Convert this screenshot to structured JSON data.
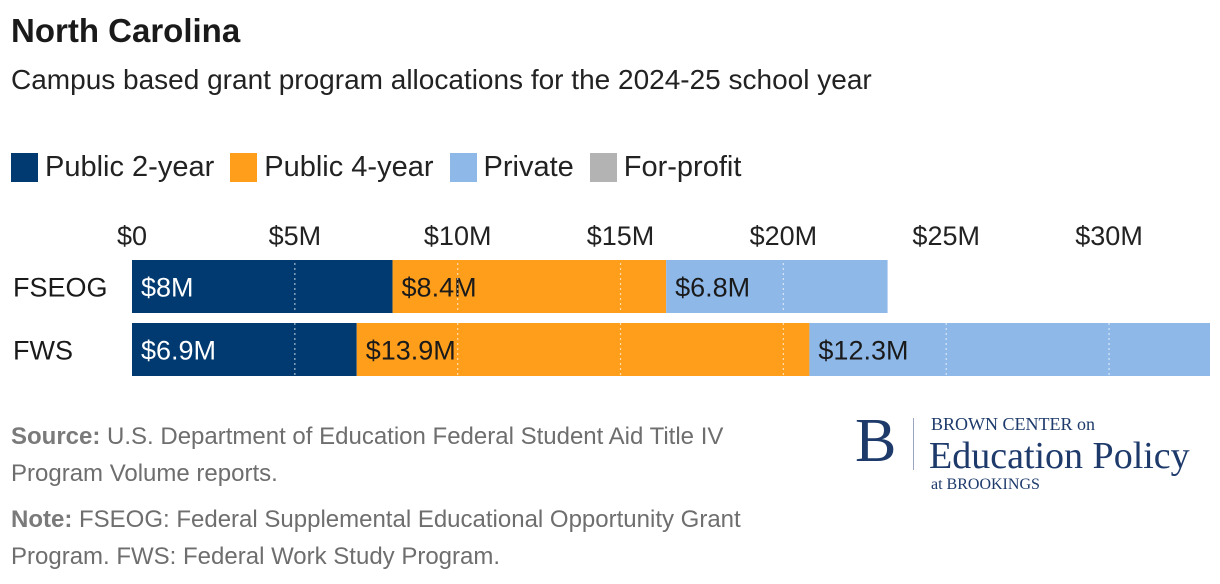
{
  "header": {
    "title": "North Carolina",
    "subtitle": "Campus based grant program allocations for the 2024-25 school year"
  },
  "chart_data": {
    "type": "bar",
    "orientation": "horizontal",
    "stacked": true,
    "title": "North Carolina",
    "subtitle": "Campus based grant program allocations for the 2024-25 school year",
    "categories": [
      "FSEOG",
      "FWS"
    ],
    "series": [
      {
        "name": "Public 2-year",
        "color": "#003a70",
        "values": [
          8.0,
          6.9
        ],
        "labels": [
          "$8M",
          "$6.9M"
        ],
        "label_color": "#ffffff"
      },
      {
        "name": "Public 4-year",
        "color": "#ff9e1b",
        "values": [
          8.4,
          13.9
        ],
        "labels": [
          "$8.4M",
          "$13.9M"
        ],
        "label_color": "#1a1a1a"
      },
      {
        "name": "Private",
        "color": "#8db8e8",
        "values": [
          6.8,
          12.3
        ],
        "labels": [
          "$6.8M",
          "$12.3M"
        ],
        "label_color": "#1a1a1a"
      },
      {
        "name": "For-profit",
        "color": "#b3b3b3",
        "values": [
          0,
          0
        ],
        "labels": [
          "",
          ""
        ],
        "label_color": "#1a1a1a"
      }
    ],
    "xlim": [
      0,
      33.1
    ],
    "ticks": [
      0,
      5,
      10,
      15,
      20,
      25,
      30
    ],
    "tick_labels": [
      "$0",
      "$5M",
      "$10M",
      "$15M",
      "$20M",
      "$25M",
      "$30M"
    ],
    "xlabel": "",
    "ylabel": "",
    "legend_position": "top",
    "grid": true
  },
  "footer": {
    "source_label": "Source:",
    "source_text": "U.S. Department of Education Federal Student Aid Title IV Program Volume reports.",
    "note_label": "Note:",
    "note_text": "FSEOG: Federal Supplemental Educational Opportunity Grant Program. FWS: Federal Work Study Program."
  },
  "logo": {
    "letter": "B",
    "line1": "BROWN CENTER on",
    "line2": "Education Policy",
    "line3": "at BROOKINGS"
  }
}
